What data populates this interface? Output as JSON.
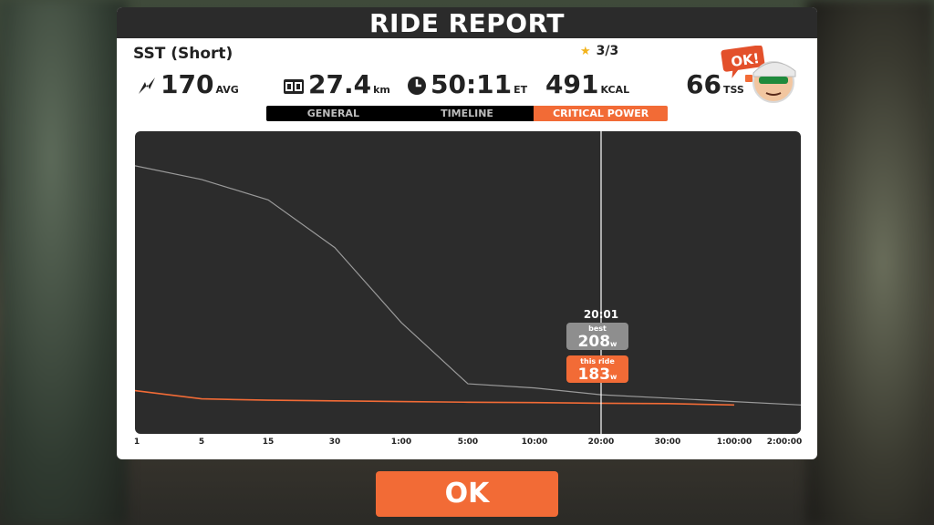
{
  "dialog": {
    "title": "RIDE REPORT",
    "workout_name": "SST (Short)",
    "rating": "3/3"
  },
  "stats": {
    "avg_power": {
      "value": "170",
      "unit": "AVG"
    },
    "distance": {
      "value": "27.4",
      "unit": "km"
    },
    "elapsed_time": {
      "value": "50:11",
      "unit": "ET"
    },
    "calories": {
      "value": "491",
      "unit": "KCAL"
    },
    "tss": {
      "value": "66",
      "unit": "TSS"
    }
  },
  "avatar": {
    "speech": "OK!"
  },
  "tabs": [
    {
      "label": "GENERAL",
      "active": false
    },
    {
      "label": "TIMELINE",
      "active": false
    },
    {
      "label": "CRITICAL POWER",
      "active": true
    }
  ],
  "chart_data": {
    "type": "line",
    "x": [
      "1",
      "5",
      "15",
      "30",
      "1:00",
      "5:00",
      "10:00",
      "20:00",
      "30:00",
      "1:00:00",
      "2:00:00"
    ],
    "x_scale": "log",
    "series": [
      {
        "name": "best",
        "values": [
          880,
          840,
          780,
          640,
          420,
          240,
          228,
          208,
          198,
          188,
          178
        ]
      },
      {
        "name": "this ride",
        "values": [
          220,
          196,
          192,
          190,
          188,
          186,
          185,
          183,
          182,
          178,
          null
        ]
      }
    ],
    "cursor": {
      "time": "20:01",
      "best_label": "best",
      "best_value": "208",
      "ride_label": "this ride",
      "ride_value": "183",
      "unit": "w"
    },
    "colors": {
      "best": "#9a9a9a",
      "this_ride": "#f26b36",
      "background": "#2c2c2c"
    }
  },
  "ok_button": {
    "label": "OK"
  }
}
